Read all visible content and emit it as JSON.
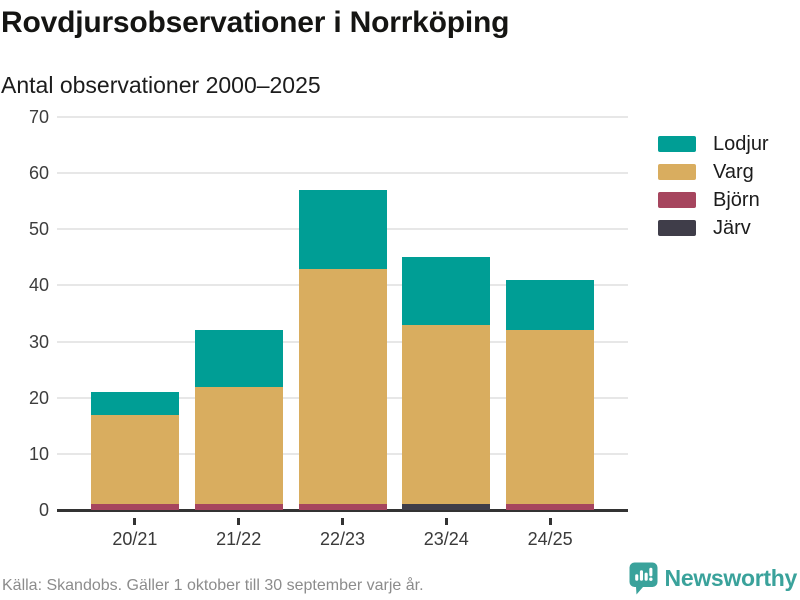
{
  "header": {
    "title": "Rovdjursobservationer i Norrköping",
    "subtitle": "Antal observationer 2000–2025"
  },
  "footer": {
    "source": "Källa: Skandobs. Gäller 1 oktober till 30 september varje år.",
    "brand": "Newsworthy"
  },
  "colors": {
    "lodjur": "#009e95",
    "varg": "#d9ad5f",
    "bjorn": "#a6455e",
    "jarv": "#3f3d49",
    "gridline": "#e7e7e7",
    "axis": "#333333",
    "brand_teal": "#3aa29b",
    "source_gray": "#8c8c8c"
  },
  "chart_data": {
    "type": "bar",
    "stacked": true,
    "title": "Rovdjursobservationer i Norrköping",
    "subtitle": "Antal observationer 2000–2025",
    "categories": [
      "20/21",
      "21/22",
      "22/23",
      "23/24",
      "24/25"
    ],
    "series": [
      {
        "name": "Lodjur",
        "color": "#009e95",
        "values": [
          4,
          10,
          14,
          12,
          9
        ]
      },
      {
        "name": "Varg",
        "color": "#d9ad5f",
        "values": [
          16,
          21,
          42,
          32,
          31
        ]
      },
      {
        "name": "Björn",
        "color": "#a6455e",
        "values": [
          1,
          1,
          1,
          0,
          1
        ]
      },
      {
        "name": "Järv",
        "color": "#3f3d49",
        "values": [
          0,
          0,
          0,
          1,
          0
        ]
      }
    ],
    "totals": [
      21,
      32,
      57,
      45,
      41
    ],
    "xlabel": "",
    "ylabel": "",
    "ylim": [
      0,
      70
    ],
    "yticks": [
      0,
      10,
      20,
      30,
      40,
      50,
      60,
      70
    ],
    "grid": "horizontal",
    "legend_position": "right"
  }
}
